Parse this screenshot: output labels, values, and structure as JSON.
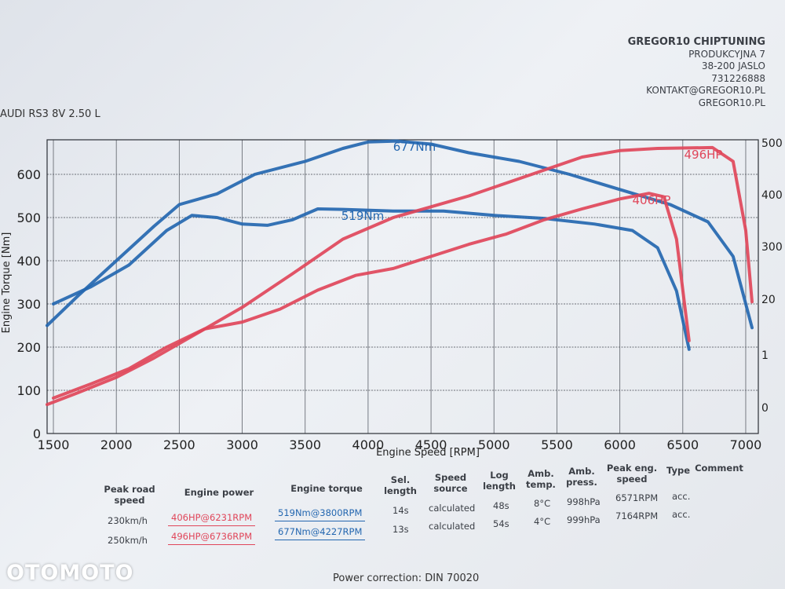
{
  "company": {
    "name": "GREGOR10 CHIPTUNING",
    "street": "PRODUKCYJNA 7",
    "city": "38-200 JASLO",
    "phone": "731226888",
    "email": "KONTAKT@GREGOR10.PL",
    "website": "GREGOR10.PL"
  },
  "vehicle": "AUDI RS3 8V 2.50 L",
  "watermark": "OTOMOTO",
  "chart_data": {
    "type": "line",
    "xlabel": "Engine Speed [RPM]",
    "ylabel": "Engine Torque [Nm]",
    "xlim": [
      1450,
      7100
    ],
    "ylim": [
      0,
      680
    ],
    "x_ticks": [
      1500,
      2000,
      2500,
      3000,
      3500,
      4000,
      4500,
      5000,
      5500,
      6000,
      6500,
      7000
    ],
    "y_ticks": [
      0,
      100,
      200,
      300,
      400,
      500,
      600
    ],
    "y2_ticks": [
      "500",
      "400",
      "300",
      "20",
      "1",
      "0"
    ],
    "grid": true,
    "series": [
      {
        "name": "torque-stock",
        "color": "#2467b0",
        "x": [
          1500,
          1800,
          2100,
          2400,
          2600,
          2800,
          3000,
          3200,
          3400,
          3600,
          3800,
          4200,
          4600,
          5000,
          5400,
          5800,
          6100,
          6300,
          6450,
          6550
        ],
        "y": [
          300,
          340,
          390,
          470,
          505,
          500,
          485,
          482,
          495,
          520,
          519,
          515,
          515,
          505,
          498,
          485,
          470,
          430,
          330,
          195
        ]
      },
      {
        "name": "torque-tuned",
        "color": "#2467b0",
        "x": [
          1450,
          1700,
          2000,
          2300,
          2500,
          2800,
          3100,
          3500,
          3800,
          4000,
          4227,
          4500,
          4800,
          5200,
          5600,
          6000,
          6400,
          6700,
          6900,
          7000,
          7050
        ],
        "y": [
          250,
          320,
          400,
          480,
          530,
          555,
          600,
          630,
          660,
          675,
          677,
          670,
          650,
          630,
          600,
          565,
          530,
          490,
          410,
          300,
          245
        ]
      },
      {
        "name": "power-stock",
        "color": "#e0465a",
        "x": [
          1500,
          1800,
          2100,
          2400,
          2700,
          3000,
          3300,
          3600,
          3900,
          4200,
          4500,
          4800,
          5100,
          5400,
          5700,
          6000,
          6231,
          6350,
          6450,
          6550
        ],
        "y": [
          82,
          115,
          150,
          200,
          242,
          258,
          288,
          332,
          366,
          382,
          410,
          438,
          462,
          495,
          520,
          543,
          556,
          548,
          450,
          215
        ]
      },
      {
        "name": "power-tuned",
        "color": "#e0465a",
        "x": [
          1450,
          1700,
          2000,
          2300,
          2600,
          3000,
          3400,
          3800,
          4200,
          4500,
          4800,
          5100,
          5400,
          5700,
          6000,
          6300,
          6736,
          6900,
          7000,
          7050
        ],
        "y": [
          67,
          95,
          130,
          175,
          225,
          292,
          370,
          450,
          500,
          525,
          550,
          580,
          610,
          640,
          655,
          660,
          662,
          630,
          470,
          305
        ]
      }
    ],
    "labels": [
      {
        "text": "677Nm",
        "color": "#2467b0"
      },
      {
        "text": "519Nm",
        "color": "#2467b0"
      },
      {
        "text": "496HP",
        "color": "#e0465a"
      },
      {
        "text": "406HP",
        "color": "#e0465a"
      }
    ]
  },
  "table": {
    "headers": {
      "peak_road_speed": "Peak road speed",
      "engine_power": "Engine power",
      "engine_torque": "Engine torque",
      "sel_length": "Sel. length",
      "speed_source": "Speed source",
      "log_length": "Log length",
      "amb_temp": "Amb. temp.",
      "amb_press": "Amb. press.",
      "peak_eng_speed": "Peak eng. speed",
      "type": "Type",
      "comment": "Comment"
    },
    "rows": [
      {
        "road_speed": "230km/h",
        "power": "406HP@6231RPM",
        "torque": "519Nm@3800RPM",
        "sel": "14s",
        "source": "calculated",
        "log": "48s",
        "temp": "8°C",
        "press": "998hPa",
        "peak": "6571RPM",
        "type": "acc."
      },
      {
        "road_speed": "250km/h",
        "power": "496HP@6736RPM",
        "torque": "677Nm@4227RPM",
        "sel": "13s",
        "source": "calculated",
        "log": "54s",
        "temp": "4°C",
        "press": "999hPa",
        "peak": "7164RPM",
        "type": "acc."
      }
    ]
  },
  "footer": "Power correction: DIN 70020"
}
